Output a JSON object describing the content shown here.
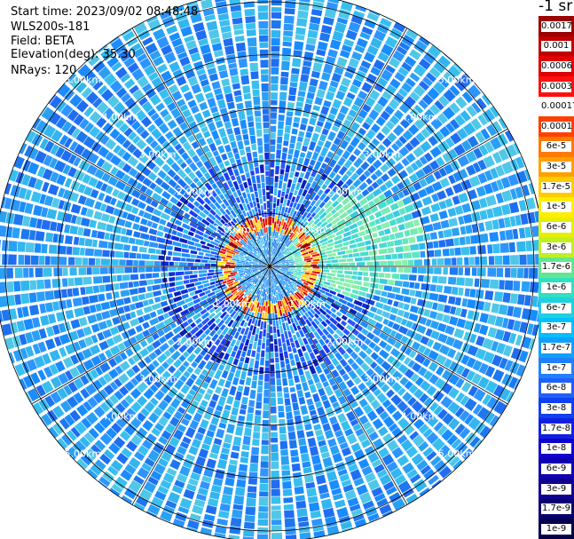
{
  "info": {
    "start_time": "Start time: 2023/09/02 08:48:48",
    "instrument": "WLS200s-181",
    "field": "Field: BETA",
    "elevation": "Elevation(deg): 35.30",
    "nrays": "NRays: 120"
  },
  "colorbar": {
    "unit_label": "-1 sr",
    "ticks": [
      "0.0017",
      "0.001",
      "0.0006",
      "0.0003",
      "0.00017",
      "0.0001",
      "6e-5",
      "3e-5",
      "1.7e-5",
      "1e-5",
      "6e-6",
      "3e-6",
      "1.7e-6",
      "1e-6",
      "6e-7",
      "3e-7",
      "1.7e-7",
      "1e-7",
      "6e-8",
      "3e-8",
      "1.7e-8",
      "1e-8",
      "6e-9",
      "3e-9",
      "1.7e-9",
      "1e-9"
    ],
    "colors": [
      "#9a0000",
      "#c00000",
      "#e00000",
      "#ff1010",
      "#ffffff",
      "#ff4000",
      "#ff7a00",
      "#ffa000",
      "#ffcc00",
      "#ffee00",
      "#e4f000",
      "#c0f020",
      "#60e890",
      "#30e0c0",
      "#20d0e0",
      "#00c0ff",
      "#10a0ff",
      "#2080ff",
      "#2060ff",
      "#1040f0",
      "#1020e0",
      "#1000d0",
      "#1000b0",
      "#100090",
      "#080070",
      "#05004a"
    ]
  },
  "chart_data": {
    "type": "heatmap",
    "title": "",
    "field": "BETA",
    "units": "sr-1",
    "elevation_deg": 35.3,
    "nrays": 120,
    "range_rings_km": [
      1,
      2,
      3,
      4,
      5
    ],
    "range_ring_labels": [
      "1.00km",
      "2.00km",
      "3.00km",
      "4.00km",
      "5.00km"
    ],
    "max_range_km": 5.2,
    "background_beta_range": [
      1e-07,
      6e-07
    ],
    "features": [
      {
        "name": "near-range ring",
        "range_km": 0.75,
        "beta_range": [
          3e-05,
          0.0001
        ]
      },
      {
        "name": "enhanced sector",
        "azimuth_deg": [
          40,
          110
        ],
        "range_km": [
          0.3,
          2.9
        ],
        "beta_range": [
          6e-07,
          1.7e-06
        ]
      },
      {
        "name": "low-signal zone",
        "range_km": [
          1.0,
          2.0
        ],
        "beta_range": [
          3e-09,
          1e-08
        ]
      }
    ]
  }
}
